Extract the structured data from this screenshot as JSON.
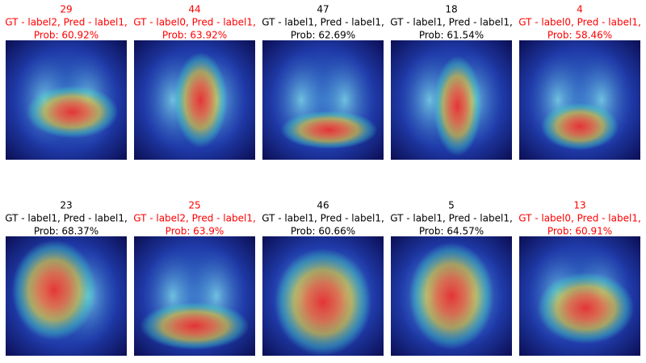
{
  "panels": [
    {
      "title": [
        "29",
        "GT - label2, Pred - label1,",
        "Prob: 60.92%"
      ],
      "color": "#ff0000"
    },
    {
      "title": [
        "44",
        "GT - label0, Pred - label1,",
        "Prob: 63.92%"
      ],
      "color": "#ff0000"
    },
    {
      "title": [
        "47",
        "GT - label1, Pred - label1,",
        "Prob: 62.69%"
      ],
      "color": "#000000"
    },
    {
      "title": [
        "18",
        "GT - label1, Pred - label1,",
        "Prob: 61.54%"
      ],
      "color": "#000000"
    },
    {
      "title": [
        "4",
        "GT - label0, Pred - label1,",
        "Prob: 58.46%"
      ],
      "color": "#ff0000"
    },
    {
      "title": [
        "23",
        "GT - label1, Pred - label1,",
        "Prob: 68.37%"
      ],
      "color": "#000000"
    },
    {
      "title": [
        "25",
        "GT - label2, Pred - label1,",
        "Prob: 63.9%"
      ],
      "color": "#ff0000"
    },
    {
      "title": [
        "46",
        "GT - label1, Pred - label1,",
        "Prob: 60.66%"
      ],
      "color": "#000000"
    },
    {
      "title": [
        "5",
        "GT - label1, Pred - label1,",
        "Prob: 64.57%"
      ],
      "color": "#000000"
    },
    {
      "title": [
        "13",
        "GT - label0, Pred - label1,",
        "Prob: 60.91%"
      ],
      "color": "#ff0000"
    }
  ]
}
